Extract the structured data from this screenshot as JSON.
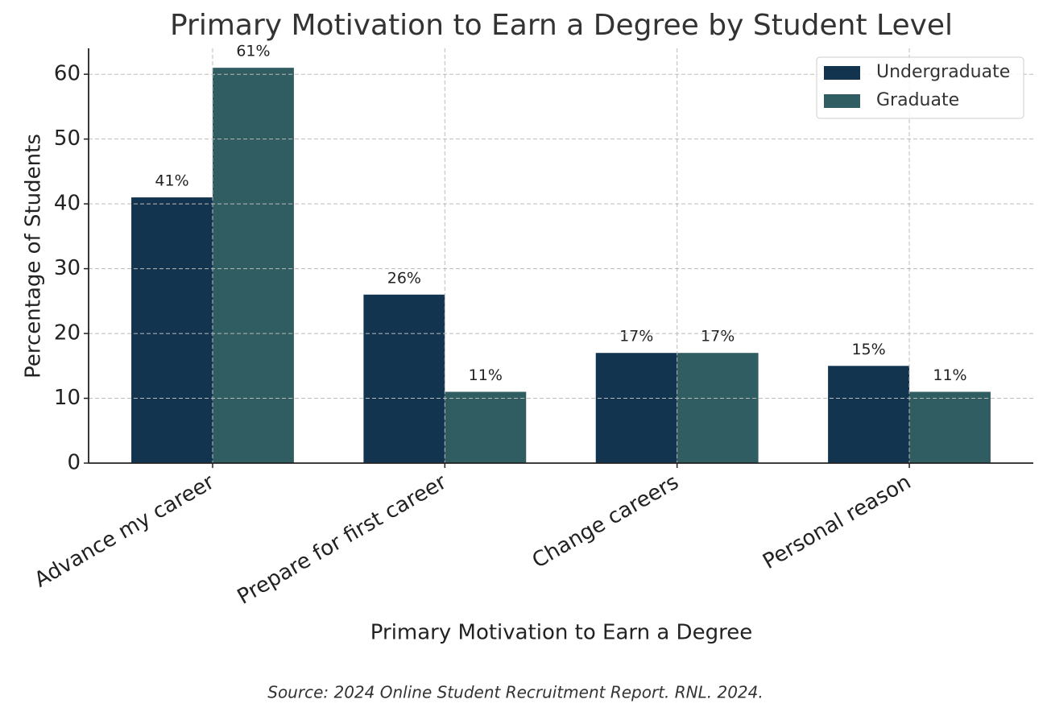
{
  "chart_data": {
    "type": "bar",
    "title": "Primary Motivation to Earn a Degree by Student Level",
    "x_label": "Primary Motivation to Earn a Degree",
    "y_label": "Percentage of Students",
    "source": "Source: 2024 Online Student Recruitment Report. RNL. 2024.",
    "categories": [
      "Advance my career",
      "Prepare for first career",
      "Change careers",
      "Personal reason"
    ],
    "series": [
      {
        "name": "Undergraduate",
        "color": "#13344f",
        "values": [
          41,
          26,
          17,
          15
        ],
        "value_labels": [
          "41%",
          "26%",
          "17%",
          "15%"
        ]
      },
      {
        "name": "Graduate",
        "color": "#2f5d62",
        "values": [
          61,
          11,
          17,
          11
        ],
        "value_labels": [
          "61%",
          "11%",
          "17%",
          "11%"
        ]
      }
    ],
    "ylim": [
      0,
      64
    ],
    "yticks": [
      0,
      10,
      20,
      30,
      40,
      50,
      60
    ],
    "grid": true,
    "legend": "upper right"
  }
}
